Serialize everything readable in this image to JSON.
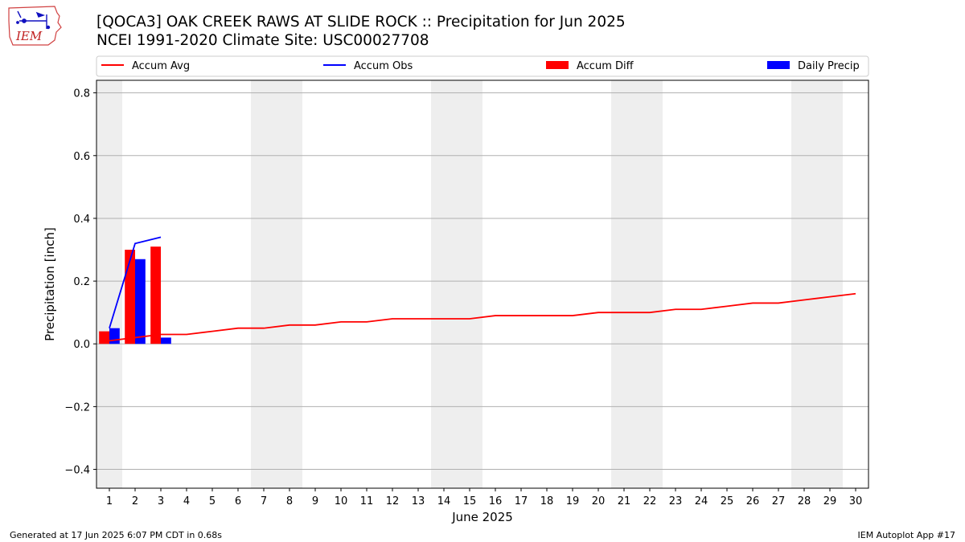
{
  "header": {
    "title_line1": "[QOCA3] OAK CREEK RAWS AT SLIDE ROCK :: Precipitation for Jun 2025",
    "title_line2": "NCEI 1991-2020 Climate Site: USC00027708",
    "logo_text": "IEM"
  },
  "footer": {
    "generated": "Generated at 17 Jun 2025 6:07 PM CDT in 0.68s",
    "app": "IEM Autoplot App #17"
  },
  "colors": {
    "accum_avg": "#ff0000",
    "accum_obs": "#0000ff",
    "accum_diff": "#ff0000",
    "daily_precip": "#0000ff",
    "weekend_shade": "#eeeeee",
    "grid": "#b0b0b0"
  },
  "chart_data": {
    "type": "bar",
    "title": "[QOCA3] OAK CREEK RAWS AT SLIDE ROCK :: Precipitation for Jun 2025",
    "subtitle": "NCEI 1991-2020 Climate Site: USC00027708",
    "xlabel": "June 2025",
    "ylabel": "Precipitation [inch]",
    "ylim": [
      -0.46,
      0.84
    ],
    "yticks": [
      -0.4,
      -0.2,
      0.0,
      0.2,
      0.4,
      0.6,
      0.8
    ],
    "ytick_labels": [
      "−0.4",
      "−0.2",
      "0.0",
      "0.2",
      "0.4",
      "0.6",
      "0.8"
    ],
    "grid": "horizontal",
    "legend_position": "top",
    "categories": [
      "1",
      "2",
      "3",
      "4",
      "5",
      "6",
      "7",
      "8",
      "9",
      "10",
      "11",
      "12",
      "13",
      "14",
      "15",
      "16",
      "17",
      "18",
      "19",
      "20",
      "21",
      "22",
      "23",
      "24",
      "25",
      "26",
      "27",
      "28",
      "29",
      "30"
    ],
    "weekend_days": [
      1,
      7,
      8,
      14,
      15,
      21,
      22,
      28,
      29
    ],
    "series": [
      {
        "name": "Accum Avg",
        "kind": "line",
        "color": "#ff0000",
        "x": [
          1,
          2,
          3,
          4,
          5,
          6,
          7,
          8,
          9,
          10,
          11,
          12,
          13,
          14,
          15,
          16,
          17,
          18,
          19,
          20,
          21,
          22,
          23,
          24,
          25,
          26,
          27,
          28,
          29,
          30
        ],
        "values": [
          0.01,
          0.02,
          0.03,
          0.03,
          0.04,
          0.05,
          0.05,
          0.06,
          0.06,
          0.07,
          0.07,
          0.08,
          0.08,
          0.08,
          0.08,
          0.09,
          0.09,
          0.09,
          0.09,
          0.1,
          0.1,
          0.1,
          0.11,
          0.11,
          0.12,
          0.13,
          0.13,
          0.14,
          0.15,
          0.16
        ]
      },
      {
        "name": "Accum Obs",
        "kind": "line",
        "color": "#0000ff",
        "x": [
          1,
          2,
          3
        ],
        "values": [
          0.05,
          0.32,
          0.34
        ]
      },
      {
        "name": "Accum Diff",
        "kind": "bar",
        "color": "#ff0000",
        "x": [
          1,
          2,
          3
        ],
        "values": [
          0.04,
          0.3,
          0.31
        ]
      },
      {
        "name": "Daily Precip",
        "kind": "bar",
        "color": "#0000ff",
        "x": [
          1,
          2,
          3
        ],
        "values": [
          0.05,
          0.27,
          0.02
        ]
      }
    ]
  }
}
